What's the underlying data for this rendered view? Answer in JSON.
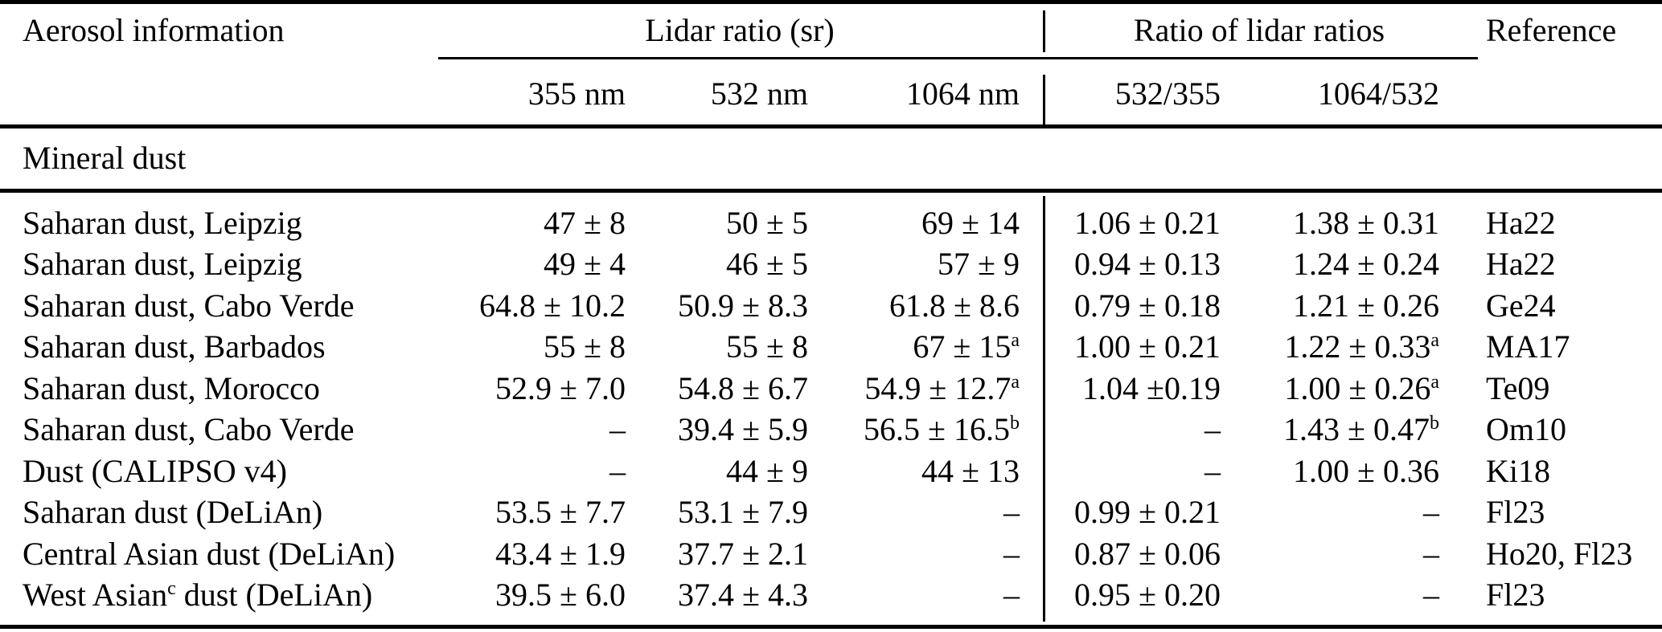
{
  "table": {
    "headers": {
      "aerosol_info": "Aerosol information",
      "lidar_ratio_group": "Lidar ratio (sr)",
      "ratio_group": "Ratio of lidar ratios",
      "reference": "Reference",
      "wavelengths": {
        "w355": "355 nm",
        "w532": "532 nm",
        "w1064": "1064 nm"
      },
      "ratios": {
        "r532_355": "532/355",
        "r1064_532": "1064/532"
      }
    },
    "section": "Mineral dust",
    "rows": [
      {
        "name": "Saharan dust, Leipzig",
        "lr355": "47 ± 8",
        "lr532": "50 ± 5",
        "lr1064": "69 ± 14",
        "r532_355": "1.06 ± 0.21",
        "r1064_532": "1.38 ± 0.31",
        "ref": "Ha22"
      },
      {
        "name": "Saharan dust, Leipzig",
        "lr355": "49 ± 4",
        "lr532": "46 ± 5",
        "lr1064": "57 ± 9",
        "r532_355": "0.94 ± 0.13",
        "r1064_532": "1.24 ± 0.24",
        "ref": "Ha22"
      },
      {
        "name": "Saharan dust, Cabo Verde",
        "lr355": "64.8 ± 10.2",
        "lr532": "50.9 ± 8.3",
        "lr1064": "61.8 ± 8.6",
        "r532_355": "0.79 ± 0.18",
        "r1064_532": "1.21 ± 0.26",
        "ref": "Ge24"
      },
      {
        "name": "Saharan dust, Barbados",
        "lr355": "55 ± 8",
        "lr532": "55 ± 8",
        "lr1064": "67 ± 15^{a}",
        "r532_355": "1.00 ± 0.21",
        "r1064_532": "1.22 ± 0.33^{a}",
        "ref": "MA17"
      },
      {
        "name": "Saharan dust, Morocco",
        "lr355": "52.9 ± 7.0",
        "lr532": "54.8 ± 6.7",
        "lr1064": "54.9 ± 12.7^{a}",
        "r532_355": "1.04 ±0.19",
        "r1064_532": "1.00 ± 0.26^{a}",
        "ref": "Te09"
      },
      {
        "name": "Saharan dust, Cabo Verde",
        "lr355": "–",
        "lr532": "39.4 ± 5.9",
        "lr1064": "56.5 ± 16.5^{b}",
        "r532_355": "–",
        "r1064_532": "1.43 ± 0.47^{b}",
        "ref": "Om10"
      },
      {
        "name": "Dust (CALIPSO v4)",
        "lr355": "–",
        "lr532": "44 ± 9",
        "lr1064": "44 ± 13",
        "r532_355": "–",
        "r1064_532": "1.00 ± 0.36",
        "ref": "Ki18"
      },
      {
        "name": "Saharan dust (DeLiAn)",
        "lr355": "53.5 ± 7.7",
        "lr532": "53.1 ± 7.9",
        "lr1064": "–",
        "r532_355": "0.99 ± 0.21",
        "r1064_532": "–",
        "ref": "Fl23"
      },
      {
        "name": "Central Asian dust (DeLiAn)",
        "lr355": "43.4 ± 1.9",
        "lr532": "37.7 ± 2.1",
        "lr1064": "–",
        "r532_355": "0.87 ± 0.06",
        "r1064_532": "–",
        "ref": "Ho20, Fl23"
      },
      {
        "name": "West Asian^{c} dust (DeLiAn)",
        "lr355": "39.5 ± 6.0",
        "lr532": "37.4 ± 4.3",
        "lr1064": "–",
        "r532_355": "0.95 ± 0.20",
        "r1064_532": "–",
        "ref": "Fl23"
      }
    ]
  }
}
